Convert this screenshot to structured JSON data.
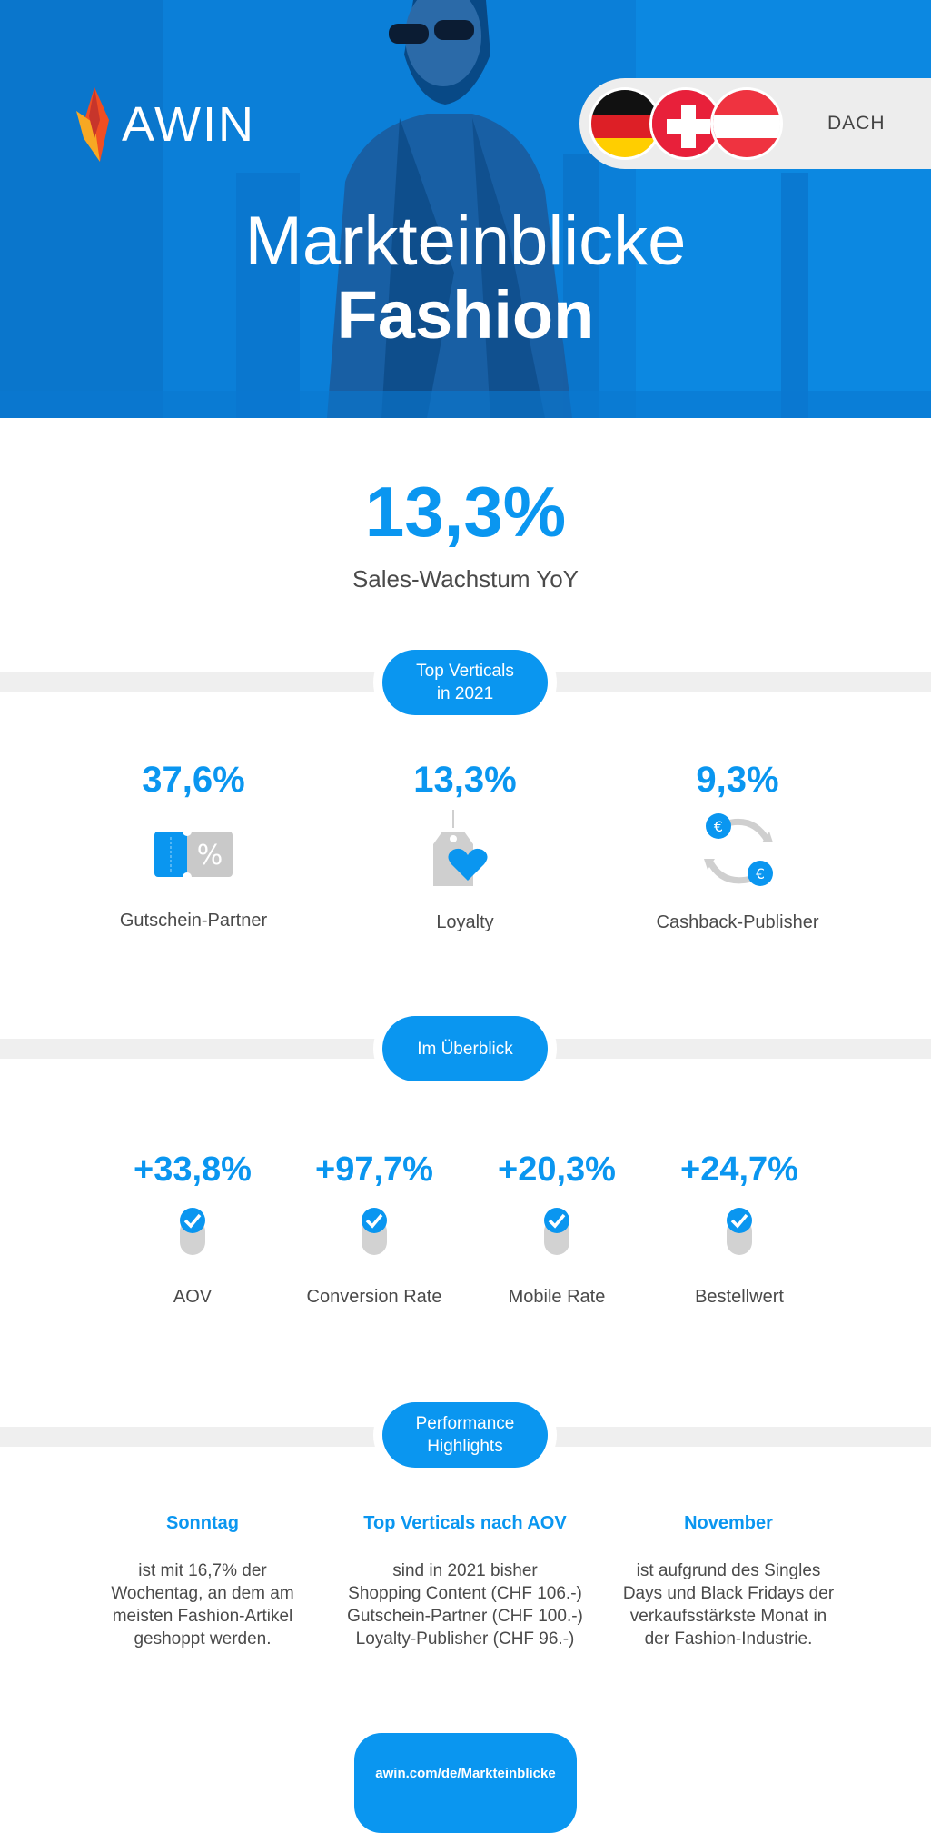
{
  "hero": {
    "logo_text": "AWIN",
    "region": "DACH",
    "title_line1": "Markteinblicke",
    "title_line2": "Fashion"
  },
  "headline_stat": {
    "value": "13,3%",
    "label": "Sales-Wachstum YoY"
  },
  "sections": {
    "verticals_pill": [
      "Top Verticals",
      "in 2021"
    ],
    "overview_pill": "Im Überblick",
    "highlights_pill": [
      "Performance",
      "Highlights"
    ]
  },
  "verticals": [
    {
      "value": "37,6%",
      "label": "Gutschein-Partner",
      "icon": "voucher-icon"
    },
    {
      "value": "13,3%",
      "label": "Loyalty",
      "icon": "loyalty-tag-icon"
    },
    {
      "value": "9,3%",
      "label": "Cashback-Publisher",
      "icon": "cashback-cycle-icon"
    }
  ],
  "kpis": [
    {
      "value": "+33,8%",
      "label": "AOV"
    },
    {
      "value": "+97,7%",
      "label": "Conversion Rate"
    },
    {
      "value": "+20,3%",
      "label": "Mobile Rate"
    },
    {
      "value": "+24,7%",
      "label": "Bestellwert"
    }
  ],
  "highlights": [
    {
      "title": "Sonntag",
      "lines": [
        "ist mit 16,7% der",
        "Wochentag, an dem am",
        "meisten Fashion-Artikel",
        "geshoppt werden."
      ]
    },
    {
      "title": "Top Verticals nach AOV",
      "lines": [
        "sind in 2021 bisher",
        "Shopping Content (CHF 106.-)",
        "Gutschein-Partner (CHF 100.-)",
        "Loyalty-Publisher (CHF 96.-)"
      ]
    },
    {
      "title": "November",
      "lines": [
        "ist aufgrund des Singles",
        "Days und Black Fridays der",
        "verkaufsstärkste Monat in",
        "der Fashion-Industrie."
      ]
    }
  ],
  "cta": {
    "url_text": "awin.com/de/Markteinblicke"
  },
  "colors": {
    "accent": "#0a96f0",
    "hero_blue": "#0b86e0",
    "band_gray": "#efefef"
  }
}
